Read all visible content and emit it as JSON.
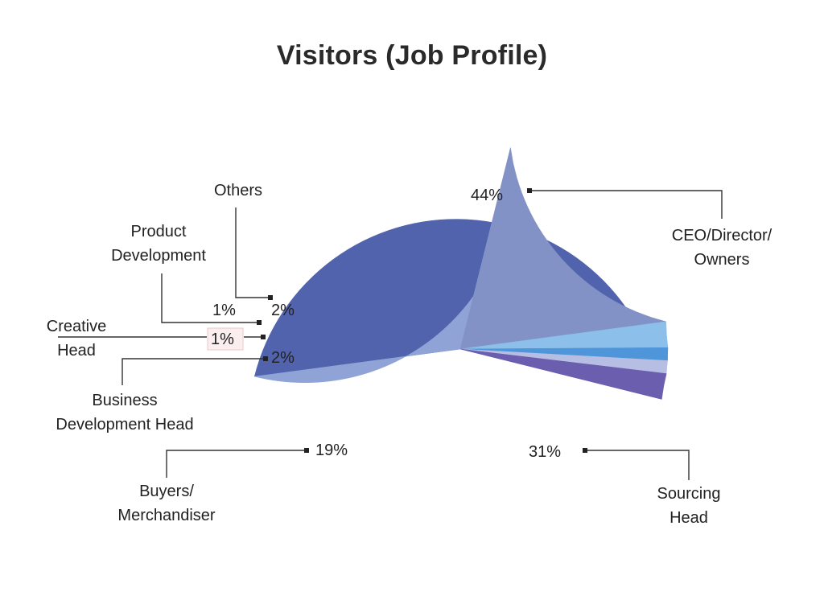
{
  "chart_data": {
    "type": "pie",
    "title": "Visitors (Job Profile)",
    "slices": [
      {
        "label": "CEO/Director/ Owners",
        "value": 44,
        "value_label": "44%",
        "color": "#5063AC"
      },
      {
        "label": "Sourcing Head",
        "value": 31,
        "value_label": "31%",
        "color": "#90A3D6"
      },
      {
        "label": "Buyers/ Merchandiser",
        "value": 19,
        "value_label": "19%",
        "color": "#8292C6"
      },
      {
        "label": "Business Development Head",
        "value": 2,
        "value_label": "2%",
        "color": "#8CBFEA"
      },
      {
        "label": "Creative Head",
        "value": 1,
        "value_label": "1%",
        "color": "#4E95D9"
      },
      {
        "label": "Product Development",
        "value": 1,
        "value_label": "1%",
        "color": "#B7BEE3"
      },
      {
        "label": "Others",
        "value": 2,
        "value_label": "2%",
        "color": "#6C5EAE"
      }
    ]
  }
}
